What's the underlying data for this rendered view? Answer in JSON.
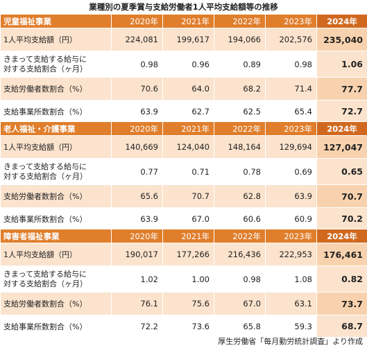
{
  "title": "業種別の夏季賞与支給労働者1人平均支給額等の推移",
  "years": [
    "2020年",
    "2021年",
    "2022年",
    "2023年",
    "2024年"
  ],
  "rows_labels": {
    "avg": "1人平均支給額（円）",
    "ratio_line1": "きまって支給する給与に",
    "ratio_line2": "対する支給割合（ヶ月）",
    "workers": "支給労働者数割合（%）",
    "offices": "支給事業所数割合（%）"
  },
  "sections": [
    {
      "name": "児童福祉事業",
      "avg": [
        "224,081",
        "199,617",
        "194,066",
        "202,576",
        "235,040"
      ],
      "ratio": [
        "0.98",
        "0.96",
        "0.89",
        "0.98",
        "1.06"
      ],
      "workers": [
        "70.6",
        "64.0",
        "68.2",
        "71.4",
        "77.7"
      ],
      "offices": [
        "63.9",
        "62.7",
        "62.5",
        "65.4",
        "72.7"
      ]
    },
    {
      "name": "老人福祉・介護事業",
      "avg": [
        "140,669",
        "124,040",
        "148,164",
        "129,694",
        "127,047"
      ],
      "ratio": [
        "0.77",
        "0.71",
        "0.78",
        "0.69",
        "0.65"
      ],
      "workers": [
        "65.6",
        "70.7",
        "62.8",
        "63.9",
        "70.7"
      ],
      "offices": [
        "63.9",
        "67.0",
        "60.6",
        "60.9",
        "70.2"
      ]
    },
    {
      "name": "障害者福祉事業",
      "avg": [
        "190,017",
        "177,266",
        "216,436",
        "222,953",
        "176,461"
      ],
      "ratio": [
        "1.02",
        "1.00",
        "0.98",
        "1.08",
        "0.82"
      ],
      "workers": [
        "76.1",
        "75.6",
        "67.0",
        "63.1",
        "73.7"
      ],
      "offices": [
        "72.2",
        "73.6",
        "65.8",
        "59.3",
        "68.7"
      ]
    }
  ],
  "source": "厚生労働省「毎月勤労統計調査」より作成",
  "colors": {
    "header": "#e07e2c",
    "header_last": "#d0691f",
    "row_odd": "#fbe3cd",
    "row_odd_last": "#f8d2ae"
  }
}
